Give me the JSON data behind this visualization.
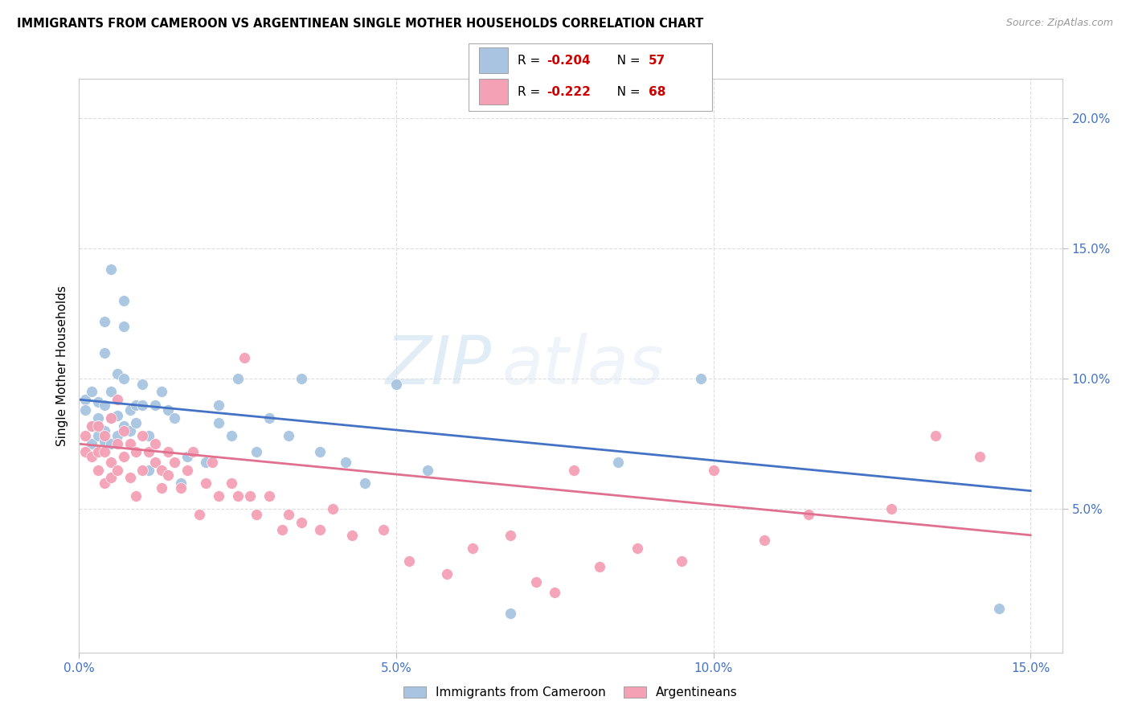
{
  "title": "IMMIGRANTS FROM CAMEROON VS ARGENTINEAN SINGLE MOTHER HOUSEHOLDS CORRELATION CHART",
  "source": "Source: ZipAtlas.com",
  "ylabel": "Single Mother Households",
  "legend_label1": "Immigrants from Cameroon",
  "legend_label2": "Argentineans",
  "r1": "-0.204",
  "n1": "57",
  "r2": "-0.222",
  "n2": "68",
  "color1": "#a8c4e0",
  "color2": "#f4a0b5",
  "line_color1": "#4472c4",
  "line_color2": "#e07090",
  "xlim": [
    0.0,
    0.155
  ],
  "ylim": [
    -0.005,
    0.215
  ],
  "xticks": [
    0.0,
    0.05,
    0.1,
    0.15
  ],
  "yticks_right": [
    0.05,
    0.1,
    0.15,
    0.2
  ],
  "watermark": "ZIPatlas",
  "line1_x0": 0.0,
  "line1_y0": 0.092,
  "line1_x1": 0.15,
  "line1_y1": 0.057,
  "line2_x0": 0.0,
  "line2_y0": 0.075,
  "line2_x1": 0.15,
  "line2_y1": 0.04,
  "scatter1_x": [
    0.001,
    0.001,
    0.002,
    0.002,
    0.002,
    0.003,
    0.003,
    0.003,
    0.003,
    0.004,
    0.004,
    0.004,
    0.004,
    0.004,
    0.005,
    0.005,
    0.005,
    0.005,
    0.006,
    0.006,
    0.006,
    0.007,
    0.007,
    0.007,
    0.007,
    0.008,
    0.008,
    0.009,
    0.009,
    0.01,
    0.01,
    0.011,
    0.011,
    0.012,
    0.013,
    0.014,
    0.015,
    0.016,
    0.017,
    0.02,
    0.022,
    0.022,
    0.024,
    0.025,
    0.028,
    0.03,
    0.033,
    0.035,
    0.038,
    0.042,
    0.045,
    0.05,
    0.055,
    0.068,
    0.085,
    0.098,
    0.145
  ],
  "scatter1_y": [
    0.092,
    0.088,
    0.095,
    0.082,
    0.075,
    0.091,
    0.085,
    0.082,
    0.078,
    0.122,
    0.11,
    0.09,
    0.08,
    0.076,
    0.142,
    0.095,
    0.085,
    0.075,
    0.102,
    0.086,
    0.078,
    0.13,
    0.12,
    0.1,
    0.082,
    0.088,
    0.08,
    0.09,
    0.083,
    0.098,
    0.09,
    0.078,
    0.065,
    0.09,
    0.095,
    0.088,
    0.085,
    0.06,
    0.07,
    0.068,
    0.09,
    0.083,
    0.078,
    0.1,
    0.072,
    0.085,
    0.078,
    0.1,
    0.072,
    0.068,
    0.06,
    0.098,
    0.065,
    0.01,
    0.068,
    0.1,
    0.012
  ],
  "scatter2_x": [
    0.001,
    0.001,
    0.002,
    0.002,
    0.003,
    0.003,
    0.003,
    0.004,
    0.004,
    0.004,
    0.005,
    0.005,
    0.005,
    0.006,
    0.006,
    0.006,
    0.007,
    0.007,
    0.008,
    0.008,
    0.009,
    0.009,
    0.01,
    0.01,
    0.011,
    0.012,
    0.012,
    0.013,
    0.013,
    0.014,
    0.014,
    0.015,
    0.016,
    0.017,
    0.018,
    0.019,
    0.02,
    0.021,
    0.022,
    0.024,
    0.025,
    0.026,
    0.027,
    0.028,
    0.03,
    0.032,
    0.033,
    0.035,
    0.038,
    0.04,
    0.043,
    0.048,
    0.052,
    0.058,
    0.062,
    0.068,
    0.072,
    0.078,
    0.082,
    0.088,
    0.095,
    0.1,
    0.108,
    0.115,
    0.128,
    0.135,
    0.142,
    0.075
  ],
  "scatter2_y": [
    0.078,
    0.072,
    0.082,
    0.07,
    0.082,
    0.072,
    0.065,
    0.078,
    0.072,
    0.06,
    0.085,
    0.068,
    0.062,
    0.092,
    0.075,
    0.065,
    0.08,
    0.07,
    0.075,
    0.062,
    0.072,
    0.055,
    0.078,
    0.065,
    0.072,
    0.075,
    0.068,
    0.058,
    0.065,
    0.072,
    0.063,
    0.068,
    0.058,
    0.065,
    0.072,
    0.048,
    0.06,
    0.068,
    0.055,
    0.06,
    0.055,
    0.108,
    0.055,
    0.048,
    0.055,
    0.042,
    0.048,
    0.045,
    0.042,
    0.05,
    0.04,
    0.042,
    0.03,
    0.025,
    0.035,
    0.04,
    0.022,
    0.065,
    0.028,
    0.035,
    0.03,
    0.065,
    0.038,
    0.048,
    0.05,
    0.078,
    0.07,
    0.018
  ]
}
